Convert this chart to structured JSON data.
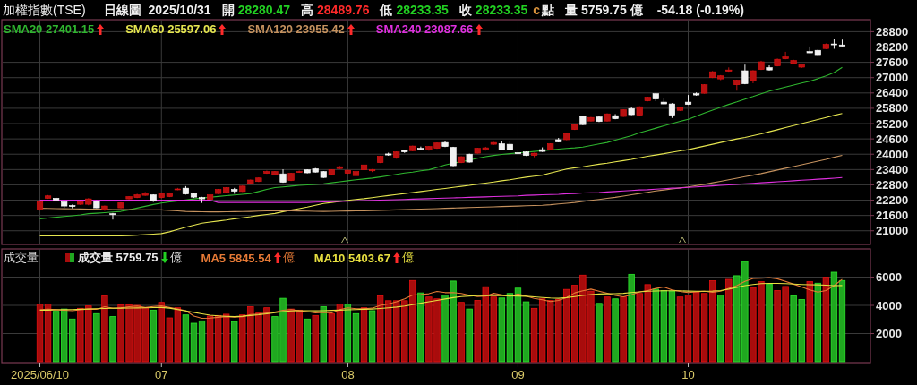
{
  "chart_data": [
    {
      "type": "candlestick",
      "title": "加權指數(TSE)",
      "annotations": [
        "日線圖",
        "2025/10/31",
        "開",
        "28280.47",
        "高",
        "28489.76",
        "低",
        "28233.35",
        "收",
        "28233.35",
        "c",
        "點",
        "量",
        "5759.75",
        "億",
        "-54.18 (-0.19%)"
      ],
      "categories": [
        "2025/06/10",
        null,
        null,
        null,
        null,
        null,
        null,
        null,
        null,
        null,
        null,
        null,
        null,
        null,
        null,
        "07",
        null,
        null,
        null,
        null,
        null,
        null,
        null,
        null,
        null,
        null,
        null,
        null,
        null,
        null,
        null,
        null,
        null,
        null,
        null,
        null,
        null,
        null,
        "08",
        null,
        null,
        null,
        null,
        null,
        null,
        null,
        null,
        null,
        null,
        null,
        null,
        null,
        null,
        null,
        null,
        null,
        null,
        null,
        null,
        "09",
        null,
        null,
        null,
        null,
        null,
        null,
        null,
        null,
        null,
        null,
        null,
        null,
        null,
        null,
        null,
        null,
        null,
        null,
        null,
        null,
        "10",
        null,
        null,
        null,
        null,
        null,
        null,
        null,
        null,
        null,
        null,
        null,
        null,
        null,
        null,
        null,
        null,
        null,
        null,
        null
      ],
      "ohlc": [
        [
          21820,
          22160,
          21790,
          22134
        ],
        [
          22274,
          22400,
          22250,
          22368
        ],
        [
          22274,
          22300,
          22180,
          22204
        ],
        [
          22134,
          22150,
          21900,
          21970
        ],
        [
          21990,
          22030,
          21880,
          21950
        ],
        [
          22040,
          22160,
          22010,
          22134
        ],
        [
          22040,
          22280,
          22000,
          22250
        ],
        [
          22170,
          22190,
          21890,
          21900
        ],
        [
          21810,
          21990,
          21780,
          21970
        ],
        [
          21670,
          21700,
          21440,
          21630
        ],
        [
          21900,
          22120,
          21880,
          22100
        ],
        [
          22250,
          22360,
          22230,
          22340
        ],
        [
          22300,
          22450,
          22280,
          22410
        ],
        [
          22390,
          22520,
          22370,
          22480
        ],
        [
          22410,
          22430,
          22130,
          22160
        ],
        [
          22300,
          22480,
          22270,
          22460
        ],
        [
          22340,
          22500,
          22320,
          22480
        ],
        [
          22610,
          22680,
          22590,
          22640
        ],
        [
          22670,
          22750,
          22420,
          22440
        ],
        [
          22460,
          22480,
          22290,
          22320
        ],
        [
          22300,
          22330,
          22090,
          22250
        ],
        [
          22230,
          22430,
          22200,
          22410
        ],
        [
          22460,
          22640,
          22440,
          22620
        ],
        [
          22510,
          22710,
          22490,
          22690
        ],
        [
          22620,
          22680,
          22450,
          22550
        ],
        [
          22540,
          22770,
          22520,
          22750
        ],
        [
          22860,
          23010,
          22840,
          22990
        ],
        [
          22930,
          23090,
          22910,
          23070
        ],
        [
          23250,
          23360,
          23230,
          23320
        ],
        [
          23200,
          23340,
          23180,
          23320
        ],
        [
          23230,
          23410,
          22880,
          22900
        ],
        [
          22970,
          23270,
          22950,
          23250
        ],
        [
          23290,
          23360,
          23270,
          23320
        ],
        [
          23390,
          23410,
          23250,
          23270
        ],
        [
          23430,
          23460,
          23280,
          23300
        ],
        [
          23320,
          23340,
          23070,
          23090
        ],
        [
          23210,
          23410,
          23190,
          23390
        ],
        [
          23440,
          23540,
          23420,
          23510
        ],
        [
          23250,
          23390,
          23230,
          23370
        ],
        [
          23160,
          23340,
          23140,
          23320
        ],
        [
          23390,
          23600,
          23370,
          23580
        ],
        [
          23350,
          23420,
          23300,
          23390
        ],
        [
          23670,
          23940,
          23650,
          23920
        ],
        [
          24010,
          24060,
          23940,
          23970
        ],
        [
          23880,
          24110,
          23820,
          24090
        ],
        [
          24150,
          24180,
          24050,
          24090
        ],
        [
          24140,
          24340,
          24120,
          24320
        ],
        [
          24230,
          24300,
          24180,
          24190
        ],
        [
          24160,
          24320,
          24140,
          24300
        ],
        [
          24230,
          24460,
          24210,
          24440
        ],
        [
          24460,
          24530,
          24280,
          24300
        ],
        [
          24270,
          24290,
          23530,
          23550
        ],
        [
          23670,
          23920,
          23650,
          23900
        ],
        [
          24000,
          24020,
          23670,
          23690
        ],
        [
          24040,
          24250,
          24020,
          24230
        ],
        [
          24160,
          24290,
          24140,
          24250
        ],
        [
          24390,
          24480,
          24370,
          24460
        ],
        [
          24410,
          24530,
          24160,
          24180
        ],
        [
          24390,
          24530,
          24160,
          24180
        ],
        [
          24060,
          24160,
          23980,
          24020
        ],
        [
          24090,
          24110,
          23930,
          23950
        ],
        [
          23950,
          24060,
          23880,
          24040
        ],
        [
          24180,
          24270,
          24090,
          24110
        ],
        [
          24180,
          24430,
          24160,
          24410
        ],
        [
          24570,
          24640,
          24470,
          24480
        ],
        [
          24570,
          24830,
          24550,
          24810
        ],
        [
          24970,
          25180,
          24950,
          25160
        ],
        [
          25480,
          25500,
          25140,
          25160
        ],
        [
          25300,
          25460,
          25280,
          25440
        ],
        [
          25460,
          25480,
          25260,
          25280
        ],
        [
          25300,
          25600,
          25280,
          25580
        ],
        [
          25510,
          25570,
          25370,
          25390
        ],
        [
          25480,
          25760,
          25460,
          25740
        ],
        [
          25790,
          25860,
          25530,
          25550
        ],
        [
          25530,
          25880,
          25510,
          25860
        ],
        [
          26090,
          26250,
          26070,
          26230
        ],
        [
          26370,
          26390,
          26080,
          26160
        ],
        [
          26040,
          26200,
          25950,
          25970
        ],
        [
          25970,
          26000,
          25420,
          25530
        ],
        [
          25720,
          25850,
          25700,
          25830
        ],
        [
          26040,
          26320,
          25930,
          25950
        ],
        [
          26370,
          26420,
          26290,
          26320
        ],
        [
          26390,
          26740,
          26370,
          26720
        ],
        [
          27000,
          27260,
          26980,
          27230
        ],
        [
          26950,
          27100,
          26900,
          27070
        ],
        [
          27250,
          27400,
          27230,
          27300
        ],
        [
          26720,
          26920,
          26490,
          26900
        ],
        [
          27270,
          27510,
          26740,
          26760
        ],
        [
          26880,
          27290,
          26780,
          27270
        ],
        [
          27320,
          27660,
          27300,
          27620
        ],
        [
          27390,
          27480,
          27280,
          27300
        ],
        [
          27460,
          27750,
          27440,
          27720
        ],
        [
          27740,
          28010,
          27720,
          27810
        ],
        [
          27550,
          27700,
          27530,
          27670
        ],
        [
          27410,
          27550,
          27380,
          27530
        ],
        [
          28020,
          28220,
          27960,
          27970
        ],
        [
          28070,
          28100,
          27880,
          27900
        ],
        [
          28140,
          28340,
          28120,
          28300
        ],
        [
          28320,
          28520,
          28130,
          28300
        ],
        [
          28280.47,
          28489.76,
          28233.35,
          28233.35
        ]
      ],
      "colors": [
        "#b81010",
        "#b81010",
        "#f0f0f0",
        "#f0f0f0",
        "#f0f0f0",
        "#b81010",
        "#b81010",
        "#f0f0f0",
        "#b81010",
        "#f0f0f0",
        "#b81010",
        "#b81010",
        "#b81010",
        "#b81010",
        "#f0f0f0",
        "#b81010",
        "#b81010",
        "#b81010",
        "#f0f0f0",
        "#f0f0f0",
        "#f0f0f0",
        "#b81010",
        "#b81010",
        "#b81010",
        "#f0f0f0",
        "#b81010",
        "#b81010",
        "#b81010",
        "#b81010",
        "#b81010",
        "#f0f0f0",
        "#b81010",
        "#b81010",
        "#f0f0f0",
        "#f0f0f0",
        "#f0f0f0",
        "#b81010",
        "#b81010",
        "#b81010",
        "#b81010",
        "#b81010",
        "#b81010",
        "#b81010",
        "#f0f0f0",
        "#b81010",
        "#f0f0f0",
        "#b81010",
        "#f0f0f0",
        "#b81010",
        "#b81010",
        "#f0f0f0",
        "#f0f0f0",
        "#b81010",
        "#f0f0f0",
        "#b81010",
        "#b81010",
        "#b81010",
        "#f0f0f0",
        "#f0f0f0",
        "#f0f0f0",
        "#f0f0f0",
        "#b81010",
        "#f0f0f0",
        "#b81010",
        "#f0f0f0",
        "#b81010",
        "#b81010",
        "#f0f0f0",
        "#b81010",
        "#f0f0f0",
        "#b81010",
        "#f0f0f0",
        "#b81010",
        "#f0f0f0",
        "#b81010",
        "#b81010",
        "#f0f0f0",
        "#f0f0f0",
        "#f0f0f0",
        "#b81010",
        "#f0f0f0",
        "#f0f0f0",
        "#b81010",
        "#b81010",
        "#b81010",
        "#b81010",
        "#b81010",
        "#f0f0f0",
        "#b81010",
        "#b81010",
        "#f0f0f0",
        "#b81010",
        "#b81010",
        "#b81010",
        "#b81010",
        "#f0f0f0",
        "#f0f0f0",
        "#b81010",
        "#f0f0f0",
        "#f0f0f0"
      ],
      "ylim": [
        20500,
        29200
      ],
      "yticks": [
        21000,
        21600,
        22200,
        22800,
        23400,
        24000,
        24600,
        25200,
        25800,
        26400,
        27000,
        27600,
        28200,
        28800
      ],
      "grid": true,
      "legend": "top left",
      "tick_labels": "y",
      "series": [
        {
          "name": "SMA20 27401.15",
          "type": "line",
          "color": "#2fb52f",
          "values": [
            21470,
            21500,
            21530,
            21560,
            21590,
            21620,
            21670,
            21690,
            21710,
            21735,
            21760,
            21820,
            21890,
            21960,
            22030,
            22090,
            22130,
            22170,
            22210,
            22250,
            22285,
            22315,
            22345,
            22375,
            22405,
            22430,
            22460,
            22540,
            22620,
            22690,
            22720,
            22750,
            22780,
            22800,
            22820,
            22840,
            22880,
            22920,
            22960,
            23000,
            23030,
            23065,
            23110,
            23160,
            23210,
            23260,
            23300,
            23350,
            23390,
            23480,
            23580,
            23650,
            23700,
            23770,
            23840,
            23900,
            23950,
            23990,
            24020,
            24050,
            24080,
            24110,
            24140,
            24170,
            24200,
            24230,
            24250,
            24280,
            24340,
            24400,
            24460,
            24550,
            24640,
            24730,
            24840,
            24930,
            25020,
            25110,
            25200,
            25290,
            25370,
            25490,
            25610,
            25730,
            25840,
            25950,
            26050,
            26160,
            26260,
            26370,
            26470,
            26550,
            26630,
            26710,
            26790,
            26860,
            26960,
            27070,
            27200,
            27401
          ]
        },
        {
          "name": "SMA60 25597.06",
          "type": "line",
          "color": "#e6e650",
          "values": [
            20800,
            20800,
            20800,
            20800,
            20800,
            20800,
            20800,
            20800,
            20800,
            20800,
            20800,
            20810,
            20830,
            20850,
            20870,
            20890,
            20960,
            21050,
            21140,
            21220,
            21300,
            21340,
            21380,
            21420,
            21470,
            21510,
            21550,
            21600,
            21640,
            21680,
            21750,
            21810,
            21870,
            21930,
            22000,
            22070,
            22110,
            22150,
            22190,
            22230,
            22260,
            22300,
            22340,
            22380,
            22420,
            22460,
            22500,
            22540,
            22580,
            22620,
            22660,
            22700,
            22740,
            22780,
            22830,
            22870,
            22910,
            22960,
            23000,
            23050,
            23100,
            23140,
            23180,
            23260,
            23340,
            23420,
            23470,
            23510,
            23560,
            23610,
            23650,
            23700,
            23750,
            23800,
            23860,
            23920,
            23970,
            24020,
            24080,
            24130,
            24180,
            24250,
            24320,
            24390,
            24460,
            24530,
            24600,
            24660,
            24730,
            24800,
            24880,
            24960,
            25040,
            25120,
            25200,
            25280,
            25360,
            25440,
            25520,
            25597
          ]
        },
        {
          "name": "SMA120 23955.42",
          "type": "line",
          "color": "#c4915e",
          "values": [
            21880,
            21875,
            21870,
            21865,
            21860,
            21855,
            21850,
            21845,
            21840,
            21835,
            21830,
            21828,
            21826,
            21824,
            21822,
            21820,
            21800,
            21780,
            21760,
            21750,
            21745,
            21742,
            21740,
            21745,
            21750,
            21755,
            21760,
            21770,
            21780,
            21780,
            21780,
            21780,
            21775,
            21770,
            21765,
            21760,
            21765,
            21770,
            21775,
            21780,
            21785,
            21790,
            21800,
            21810,
            21820,
            21830,
            21840,
            21850,
            21860,
            21870,
            21880,
            21890,
            21900,
            21910,
            21920,
            21930,
            21940,
            21950,
            21960,
            21970,
            21980,
            21990,
            22000,
            22020,
            22050,
            22080,
            22110,
            22150,
            22190,
            22230,
            22270,
            22310,
            22360,
            22410,
            22460,
            22510,
            22560,
            22600,
            22640,
            22680,
            22720,
            22770,
            22820,
            22880,
            22940,
            23000,
            23060,
            23120,
            23180,
            23240,
            23310,
            23380,
            23450,
            23520,
            23590,
            23660,
            23730,
            23800,
            23880,
            23955
          ]
        },
        {
          "name": "SMA240 23087.66",
          "type": "line",
          "color": "#e030e0",
          "values": [
            22200,
            22200,
            22200,
            22200,
            22200,
            22200,
            22200,
            22200,
            22200,
            22200,
            22200,
            22200,
            22200,
            22200,
            22200,
            22200,
            22200,
            22200,
            22200,
            22200,
            22200,
            22200,
            22110,
            22110,
            22110,
            22110,
            22110,
            22110,
            22110,
            22110,
            22110,
            22110,
            22110,
            22110,
            22120,
            22130,
            22140,
            22150,
            22160,
            22170,
            22180,
            22190,
            22200,
            22210,
            22220,
            22230,
            22240,
            22250,
            22260,
            22270,
            22280,
            22290,
            22300,
            22310,
            22320,
            22330,
            22340,
            22350,
            22360,
            22370,
            22390,
            22400,
            22410,
            22420,
            22430,
            22450,
            22460,
            22480,
            22490,
            22500,
            22520,
            22540,
            22560,
            22580,
            22600,
            22610,
            22630,
            22650,
            22670,
            22680,
            22700,
            22720,
            22740,
            22760,
            22780,
            22800,
            22820,
            22840,
            22860,
            22880,
            22900,
            22920,
            22940,
            22960,
            22980,
            23000,
            23020,
            23040,
            23060,
            23087
          ]
        }
      ]
    },
    {
      "type": "bar",
      "title": "成交量",
      "categories": [
        "2025/06/10",
        null,
        null,
        null,
        null,
        null,
        null,
        null,
        null,
        null,
        null,
        null,
        null,
        null,
        null,
        "07",
        null,
        null,
        null,
        null,
        null,
        null,
        null,
        null,
        null,
        null,
        null,
        null,
        null,
        null,
        null,
        null,
        null,
        null,
        null,
        null,
        null,
        null,
        "08",
        null,
        null,
        null,
        null,
        null,
        null,
        null,
        null,
        null,
        null,
        null,
        null,
        null,
        null,
        null,
        null,
        null,
        null,
        null,
        null,
        "09",
        null,
        null,
        null,
        null,
        null,
        null,
        null,
        null,
        null,
        null,
        null,
        null,
        null,
        null,
        null,
        null,
        null,
        null,
        null,
        null,
        "10",
        null,
        null,
        null,
        null,
        null,
        null,
        null,
        null,
        null,
        null,
        null,
        null,
        null,
        null,
        null,
        null,
        null,
        null,
        null
      ],
      "ylim": [
        0,
        8000
      ],
      "yticks": [
        2000,
        4000,
        6000
      ],
      "grid": true,
      "legend": "top left",
      "series": [
        {
          "name": "成交量 5759.75 億",
          "type": "bar",
          "values": [
            4080,
            4100,
            3575,
            3740,
            3030,
            3790,
            3960,
            3410,
            4670,
            3200,
            4040,
            4040,
            4000,
            3830,
            3660,
            4210,
            3110,
            3830,
            3320,
            2730,
            2900,
            3240,
            3280,
            3370,
            2820,
            3320,
            3910,
            3450,
            3830,
            3200,
            4500,
            3740,
            3660,
            3030,
            3280,
            3910,
            3410,
            4100,
            4080,
            3410,
            3830,
            3620,
            4670,
            4330,
            4330,
            4330,
            5760,
            4880,
            4590,
            4460,
            4730,
            5720,
            4210,
            3740,
            4350,
            5320,
            4590,
            4520,
            4840,
            5220,
            4250,
            3790,
            4460,
            4350,
            4420,
            5130,
            5420,
            6140,
            5010,
            4140,
            4590,
            4460,
            4590,
            6200,
            4840,
            5470,
            5150,
            5050,
            5010,
            4590,
            4730,
            4940,
            4840,
            5740,
            4730,
            5840,
            6100,
            7110,
            5260,
            5680,
            5510,
            5050,
            5340,
            4670,
            4420,
            5680,
            5570,
            5990,
            6350,
            5760
          ],
          "colors": [
            "#a80c0c",
            "#a80c0c",
            "#20a820",
            "#20a820",
            "#20a820",
            "#a80c0c",
            "#a80c0c",
            "#20a820",
            "#a80c0c",
            "#20a820",
            "#a80c0c",
            "#a80c0c",
            "#a80c0c",
            "#a80c0c",
            "#20a820",
            "#a80c0c",
            "#a80c0c",
            "#a80c0c",
            "#20a820",
            "#20a820",
            "#20a820",
            "#a80c0c",
            "#a80c0c",
            "#a80c0c",
            "#20a820",
            "#a80c0c",
            "#a80c0c",
            "#a80c0c",
            "#a80c0c",
            "#20a820",
            "#20a820",
            "#a80c0c",
            "#a80c0c",
            "#20a820",
            "#a80c0c",
            "#20a820",
            "#a80c0c",
            "#a80c0c",
            "#20a820",
            "#20a820",
            "#a80c0c",
            "#20a820",
            "#a80c0c",
            "#a80c0c",
            "#a80c0c",
            "#a80c0c",
            "#a80c0c",
            "#20a820",
            "#a80c0c",
            "#a80c0c",
            "#20a820",
            "#20a820",
            "#a80c0c",
            "#20a820",
            "#a80c0c",
            "#a80c0c",
            "#a80c0c",
            "#20a820",
            "#20a820",
            "#20a820",
            "#20a820",
            "#a80c0c",
            "#a80c0c",
            "#a80c0c",
            "#a80c0c",
            "#a80c0c",
            "#a80c0c",
            "#a80c0c",
            "#a80c0c",
            "#20a820",
            "#a80c0c",
            "#20a820",
            "#a80c0c",
            "#20a820",
            "#a80c0c",
            "#a80c0c",
            "#20a820",
            "#20a820",
            "#20a820",
            "#a80c0c",
            "#a80c0c",
            "#a80c0c",
            "#a80c0c",
            "#a80c0c",
            "#20a820",
            "#a80c0c",
            "#20a820",
            "#20a820",
            "#a80c0c",
            "#a80c0c",
            "#20a820",
            "#a80c0c",
            "#a80c0c",
            "#20a820",
            "#20a820",
            "#a80c0c",
            "#20a820",
            "#a80c0c",
            "#20a820",
            "#20a820"
          ]
        },
        {
          "name": "MA5 5845.54 億",
          "type": "line",
          "color": "#e67a36",
          "values": [
            3700,
            3720,
            3690,
            3650,
            3620,
            3680,
            3740,
            3720,
            3900,
            3800,
            3820,
            3900,
            3950,
            3850,
            3920,
            3960,
            3850,
            3740,
            3620,
            3240,
            3080,
            3100,
            3150,
            3200,
            3160,
            3200,
            3350,
            3380,
            3450,
            3520,
            3650,
            3700,
            3610,
            3560,
            3460,
            3490,
            3460,
            3700,
            3830,
            3760,
            3760,
            3800,
            4000,
            4100,
            4250,
            4460,
            4730,
            4760,
            4820,
            4980,
            4900,
            4900,
            4840,
            4710,
            4620,
            4650,
            4850,
            4750,
            4630,
            4800,
            4650,
            4490,
            4400,
            4270,
            4350,
            4550,
            4880,
            5030,
            5150,
            5000,
            4860,
            4700,
            4600,
            4750,
            4950,
            5050,
            5200,
            5300,
            5100,
            4980,
            4900,
            4960,
            5000,
            4920,
            5000,
            5200,
            5400,
            5700,
            5900,
            5920,
            5960,
            5880,
            5700,
            5500,
            5300,
            5100,
            4940,
            5050,
            5400,
            5846
          ]
        },
        {
          "name": "MA10 5403.67 億",
          "type": "line",
          "color": "#e8e040",
          "values": [
            3650,
            3660,
            3680,
            3700,
            3700,
            3720,
            3740,
            3760,
            3780,
            3790,
            3800,
            3810,
            3820,
            3830,
            3840,
            3850,
            3800,
            3700,
            3600,
            3500,
            3400,
            3300,
            3250,
            3220,
            3200,
            3230,
            3280,
            3330,
            3400,
            3480,
            3560,
            3600,
            3620,
            3620,
            3610,
            3620,
            3640,
            3660,
            3680,
            3700,
            3720,
            3740,
            3780,
            3830,
            3880,
            3950,
            4050,
            4150,
            4250,
            4350,
            4450,
            4550,
            4620,
            4660,
            4680,
            4690,
            4690,
            4680,
            4670,
            4660,
            4640,
            4600,
            4560,
            4520,
            4500,
            4550,
            4620,
            4700,
            4760,
            4800,
            4820,
            4830,
            4850,
            4900,
            4950,
            5000,
            5020,
            5030,
            5030,
            5030,
            5010,
            5000,
            5000,
            5010,
            5050,
            5150,
            5280,
            5400,
            5480,
            5540,
            5560,
            5560,
            5540,
            5510,
            5480,
            5460,
            5450,
            5430,
            5400,
            5404
          ]
        }
      ]
    }
  ]
}
